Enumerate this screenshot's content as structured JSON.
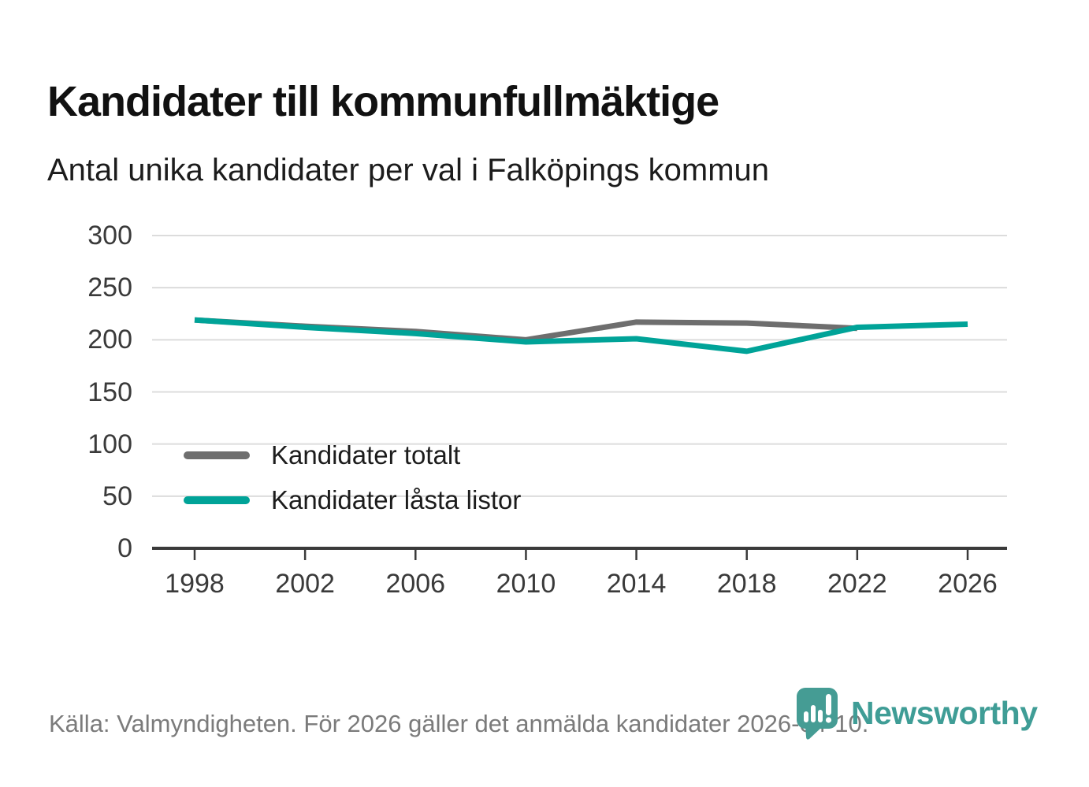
{
  "title": "Kandidater till kommunfullmäktige",
  "subtitle": "Antal unika kandidater per val i Falköpings kommun",
  "footer": {
    "source_text": "Källa: Valmyndigheten. För 2026 gäller det anmälda kandidater 2026-04-10.",
    "brand": "Newsworthy"
  },
  "colors": {
    "accent_teal": "#00a398",
    "series_gray": "#6e6e6e",
    "grid": "#dcdcdc",
    "axis": "#3a3a3a",
    "title_text": "#111111",
    "body_text": "#1c1c1c",
    "muted_text": "#7b7b7b",
    "logo_teal": "#459c94",
    "wordmark_teal": "#3f9d96"
  },
  "chart_data": {
    "type": "line",
    "title": "Kandidater till kommunfullmäktige",
    "subtitle": "Antal unika kandidater per val i Falköpings kommun",
    "x": [
      1998,
      2002,
      2006,
      2010,
      2014,
      2018,
      2022,
      2026
    ],
    "series": [
      {
        "name": "Kandidater totalt",
        "color": "#6e6e6e",
        "values": [
          219,
          213,
          208,
          200,
          217,
          216,
          211,
          null
        ]
      },
      {
        "name": "Kandidater låsta listor",
        "color": "#00a398",
        "values": [
          219,
          212,
          206,
          198,
          201,
          189,
          212,
          215
        ]
      }
    ],
    "xlabel": "",
    "ylabel": "",
    "ylim": [
      0,
      300
    ],
    "yticks": [
      0,
      50,
      100,
      150,
      200,
      250,
      300
    ],
    "grid": true,
    "legend_position": "inside-bottom-left"
  }
}
